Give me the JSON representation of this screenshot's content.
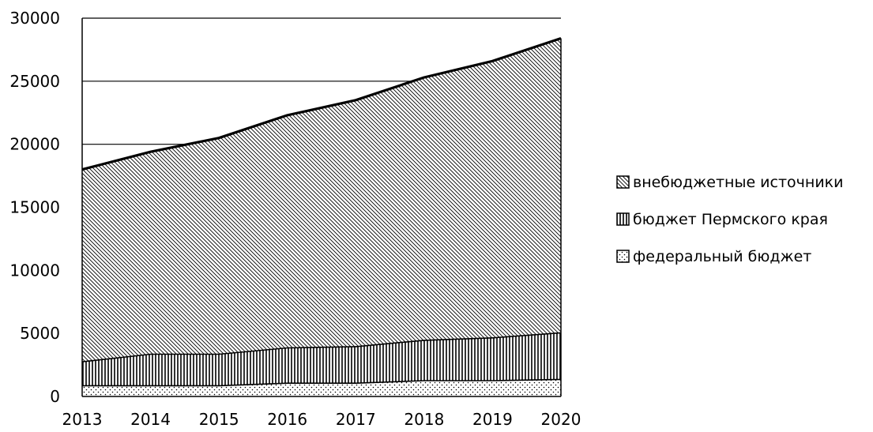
{
  "chart_data": {
    "type": "area",
    "stacked": true,
    "x": [
      "2013",
      "2014",
      "2015",
      "2016",
      "2017",
      "2018",
      "2019",
      "2020"
    ],
    "ylim": [
      0,
      30000
    ],
    "yticks": [
      "0",
      "5000",
      "10000",
      "15000",
      "20000",
      "25000",
      "30000"
    ],
    "grid": "horizontal",
    "legend_position": "right",
    "series": [
      {
        "name": "федеральный бюджет",
        "pattern": "dots",
        "values": [
          900,
          900,
          900,
          1100,
          1100,
          1300,
          1300,
          1400
        ]
      },
      {
        "name": "бюджет Пермского края",
        "pattern": "vertical-lines",
        "values": [
          1900,
          2500,
          2500,
          2800,
          2900,
          3200,
          3400,
          3700
        ]
      },
      {
        "name": "внебюджетные источники",
        "pattern": "diagonal-lines",
        "values": [
          15200,
          16000,
          17100,
          18400,
          19500,
          20800,
          21900,
          23300
        ]
      }
    ],
    "legend_order": [
      2,
      1,
      0
    ]
  }
}
